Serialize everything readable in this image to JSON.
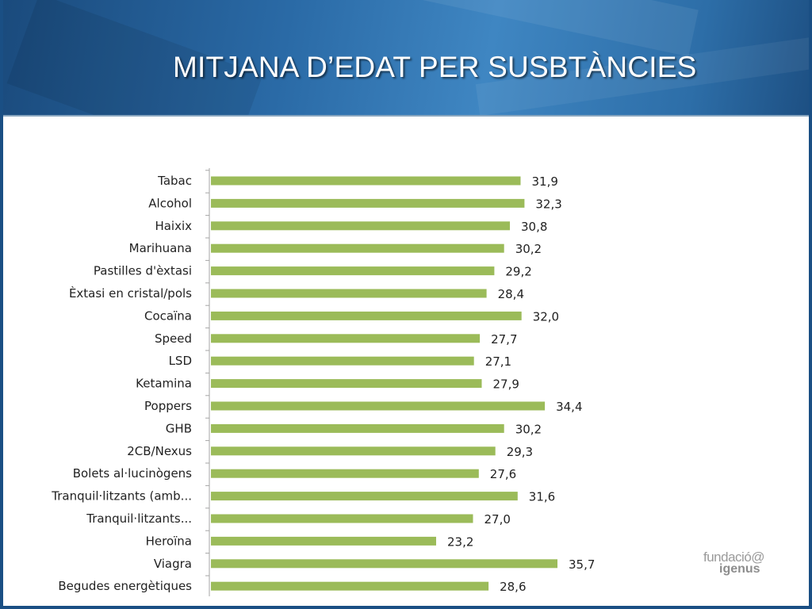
{
  "header": {
    "title": "MITJANA D’EDAT PER SUSBTÀNCIES"
  },
  "colors": {
    "bar": "#9bbb59",
    "header_blue": "#2a6aa6"
  },
  "logo": {
    "line1": "fundació@",
    "line2": "igenus"
  },
  "chart_data": {
    "type": "bar",
    "orientation": "horizontal",
    "categories": [
      "Tabac",
      "Alcohol",
      "Haixix",
      "Marihuana",
      "Pastilles d'èxtasi",
      "Èxtasi en cristal/pols",
      "Cocaïna",
      "Speed",
      "LSD",
      "Ketamina",
      "Poppers",
      "GHB",
      "2CB/Nexus",
      "Bolets al·lucinògens",
      "Tranquil·litzants (amb...",
      "Tranquil·litzants...",
      "Heroïna",
      "Viagra",
      "Begudes energètiques"
    ],
    "values": [
      31.9,
      32.3,
      30.8,
      30.2,
      29.2,
      28.4,
      32.0,
      27.7,
      27.1,
      27.9,
      34.4,
      30.2,
      29.3,
      27.6,
      31.6,
      27.0,
      23.2,
      35.7,
      28.6
    ],
    "value_labels": [
      "31,9",
      "32,3",
      "30,8",
      "30,2",
      "29,2",
      "28,4",
      "32,0",
      "27,7",
      "27,1",
      "27,9",
      "34,4",
      "30,2",
      "29,3",
      "27,6",
      "31,6",
      "27,0",
      "23,2",
      "35,7",
      "28,6"
    ],
    "xlim": [
      0,
      35.7
    ],
    "grid": false,
    "legend": "none"
  }
}
